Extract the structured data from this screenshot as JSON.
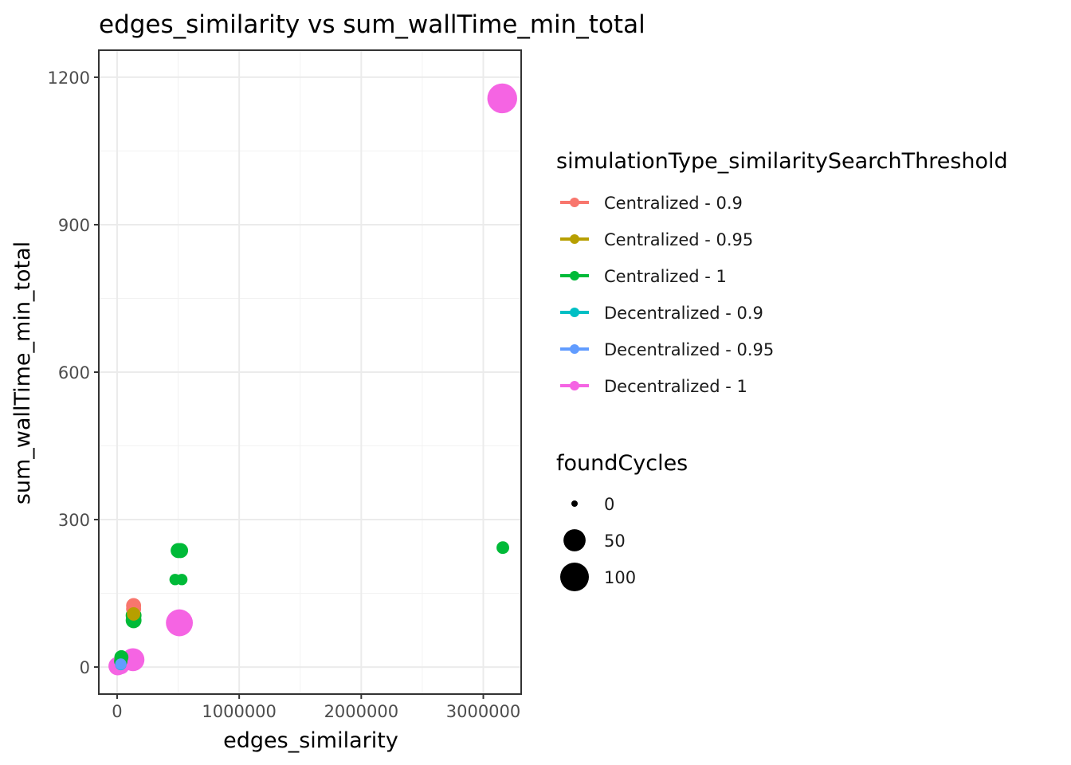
{
  "chart_data": {
    "type": "scatter",
    "title": "edges_similarity  vs  sum_wallTime_min_total",
    "xlabel": "edges_similarity",
    "ylabel": "sum_wallTime_min_total",
    "xlim": [
      -150000,
      3310000
    ],
    "ylim": [
      -55,
      1255
    ],
    "x_ticks": [
      0,
      1000000,
      2000000,
      3000000
    ],
    "x_tick_labels": [
      "0",
      "1000000",
      "2000000",
      "3000000"
    ],
    "y_ticks": [
      0,
      300,
      600,
      900,
      1200
    ],
    "y_tick_labels": [
      "0",
      "300",
      "600",
      "900",
      "1200"
    ],
    "grid": true,
    "legend_position": "right",
    "color_legend": {
      "title": "simulationType_similaritySearchThreshold",
      "entries": [
        {
          "label": "Centralized - 0.9",
          "color": "#F8766D"
        },
        {
          "label": "Centralized - 0.95",
          "color": "#B79F00"
        },
        {
          "label": "Centralized - 1",
          "color": "#00BA38"
        },
        {
          "label": "Decentralized - 0.9",
          "color": "#00BFC4"
        },
        {
          "label": "Decentralized - 0.95",
          "color": "#619CFF"
        },
        {
          "label": "Decentralized - 1",
          "color": "#F564E3"
        }
      ]
    },
    "size_legend": {
      "title": "foundCycles",
      "entries": [
        {
          "label": "0",
          "value": 0
        },
        {
          "label": "50",
          "value": 50
        },
        {
          "label": "100",
          "value": 100
        }
      ]
    },
    "series": [
      {
        "name": "Centralized - 0.9",
        "points": [
          {
            "x": 135000,
            "y": 125,
            "size": 15
          },
          {
            "x": 135000,
            "y": 118,
            "size": 15
          }
        ]
      },
      {
        "name": "Centralized - 0.95",
        "points": [
          {
            "x": 135000,
            "y": 108,
            "size": 10
          }
        ]
      },
      {
        "name": "Centralized - 1",
        "points": [
          {
            "x": 3160000,
            "y": 243,
            "size": 8
          },
          {
            "x": 520000,
            "y": 237,
            "size": 15
          },
          {
            "x": 500000,
            "y": 237,
            "size": 15
          },
          {
            "x": 475000,
            "y": 178,
            "size": 5
          },
          {
            "x": 530000,
            "y": 178,
            "size": 5
          },
          {
            "x": 135000,
            "y": 105,
            "size": 18
          },
          {
            "x": 135000,
            "y": 95,
            "size": 18
          },
          {
            "x": 35000,
            "y": 20,
            "size": 12
          },
          {
            "x": 30000,
            "y": 12,
            "size": 10
          }
        ]
      },
      {
        "name": "Decentralized - 0.9",
        "points": [
          {
            "x": 30000,
            "y": 5,
            "size": 5
          }
        ]
      },
      {
        "name": "Decentralized - 0.95",
        "points": [
          {
            "x": 30000,
            "y": 6,
            "size": 5
          }
        ]
      },
      {
        "name": "Decentralized - 1",
        "points": [
          {
            "x": 3155000,
            "y": 1157,
            "size": 110
          },
          {
            "x": 510000,
            "y": 90,
            "size": 85
          },
          {
            "x": 495000,
            "y": 78,
            "size": 10
          },
          {
            "x": 130000,
            "y": 15,
            "size": 55
          },
          {
            "x": 5000,
            "y": 2,
            "size": 30
          },
          {
            "x": 30000,
            "y": 3,
            "size": 25
          }
        ]
      }
    ]
  }
}
